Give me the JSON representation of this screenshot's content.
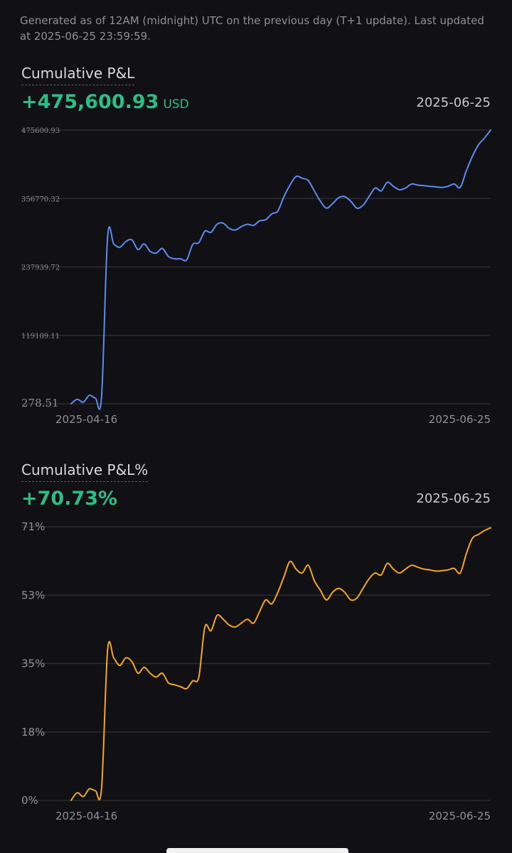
{
  "header": {
    "note": "Generated as of 12AM (midnight) UTC on the previous day (T+1 update). Last updated at 2025-06-25 23:59:59."
  },
  "pnl": {
    "title": "Cumulative P&L",
    "value": "+475,600.93",
    "unit": "USD",
    "date": "2025-06-25"
  },
  "pnl_pct": {
    "title": "Cumulative P&L%",
    "value": "+70.73%",
    "date": "2025-06-25"
  },
  "colors": {
    "positive": "#2ebd85",
    "pnl_line": "#5b8def",
    "pct_line": "#f5a623",
    "grid": "#2c2c31",
    "axis_text": "#8f8f96"
  },
  "chart_data": [
    {
      "type": "line",
      "title": "Cumulative P&L",
      "x_start_label": "2025-04-16",
      "x_end_label": "2025-06-25",
      "y_ticks": [
        "475600.93",
        "356770.32",
        "237939.72",
        "119109.11",
        "278.51"
      ],
      "ylim": [
        278.51,
        475600.93
      ],
      "grid": true,
      "series": [
        {
          "values": [
            278.51,
            8000,
            3000,
            15000,
            10000,
            12000,
            290000,
            278000,
            272000,
            282000,
            285000,
            268000,
            278000,
            265000,
            262000,
            270000,
            256000,
            252000,
            252000,
            250000,
            277000,
            280000,
            300000,
            298000,
            312000,
            314000,
            305000,
            302000,
            308000,
            312000,
            310000,
            318000,
            320000,
            330000,
            335000,
            360000,
            380000,
            395000,
            392000,
            388000,
            370000,
            352000,
            340000,
            348000,
            358000,
            360000,
            352000,
            340000,
            345000,
            360000,
            375000,
            370000,
            385000,
            378000,
            372000,
            375000,
            382000,
            380000,
            379000,
            378000,
            377000,
            376000,
            378000,
            382000,
            376000,
            405000,
            430000,
            450000,
            462000,
            475600.93
          ]
        }
      ]
    },
    {
      "type": "line",
      "title": "Cumulative P&L%",
      "x_start_label": "2025-04-16",
      "x_end_label": "2025-06-25",
      "y_ticks": [
        "71%",
        "53%",
        "35%",
        "18%",
        "0%"
      ],
      "ylim": [
        0,
        71
      ],
      "grid": true,
      "series": [
        {
          "values": [
            0,
            2,
            1,
            3,
            2.5,
            3,
            39,
            37,
            35,
            37,
            36,
            33,
            34.5,
            33,
            32,
            33,
            30.5,
            30,
            29.5,
            29,
            31,
            32,
            45,
            44,
            48,
            47,
            45.5,
            45,
            46,
            47,
            46,
            49,
            52,
            51,
            54,
            58,
            62,
            60,
            59,
            61,
            57,
            54.5,
            52,
            54,
            55,
            54,
            52,
            52.5,
            55,
            57.5,
            59,
            58.5,
            61.5,
            60,
            59,
            60,
            61,
            60.5,
            60,
            59.8,
            59.5,
            59.6,
            59.8,
            60.2,
            59,
            64,
            68,
            69,
            70,
            70.73
          ]
        }
      ]
    }
  ]
}
